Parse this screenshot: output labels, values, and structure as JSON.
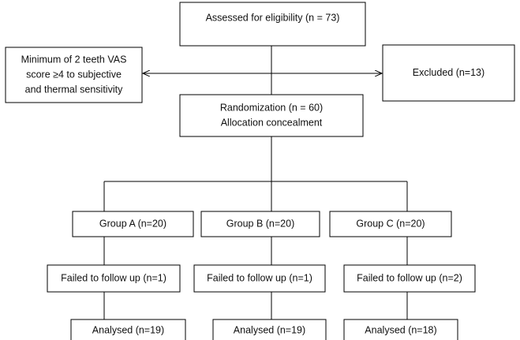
{
  "nodes": [
    {
      "lines": [
        "Assessed for eligibility (n = 73)"
      ]
    },
    {
      "lines": [
        "Minimum of 2 teeth VAS",
        "score ≥4 to subjective",
        "and thermal sensitivity"
      ]
    },
    {
      "lines": [
        "Excluded (n=13)"
      ]
    },
    {
      "lines": [
        "Randomization (n = 60)",
        "Allocation concealment"
      ]
    },
    {
      "lines": [
        "Group A (n=20)"
      ]
    },
    {
      "lines": [
        "Group B (n=20)"
      ]
    },
    {
      "lines": [
        "Group C (n=20)"
      ]
    },
    {
      "lines": [
        "Failed to follow up (n=1)"
      ]
    },
    {
      "lines": [
        "Failed to follow up (n=1)"
      ]
    },
    {
      "lines": [
        "Failed to follow up (n=2)"
      ]
    },
    {
      "lines": [
        "Analysed (n=19)"
      ]
    },
    {
      "lines": [
        "Analysed (n=19)"
      ]
    },
    {
      "lines": [
        "Analysed (n=18)"
      ]
    }
  ]
}
